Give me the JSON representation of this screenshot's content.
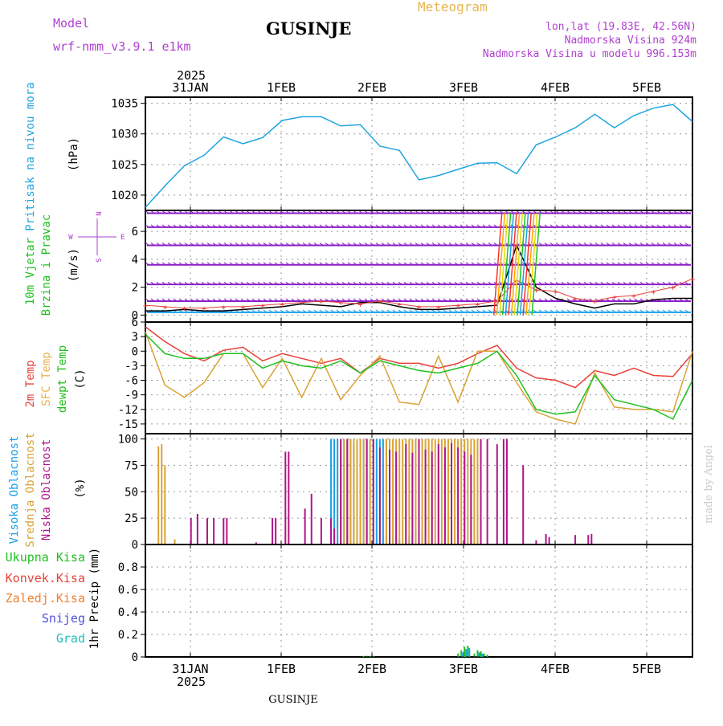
{
  "header": {
    "model_label": "Model",
    "model_name": "wrf-nmm_v3.9.1 e1km",
    "meteogram": "Meteogram",
    "location": "GUSINJE",
    "lonlat": "lon,lat (19.83E, 42.56N)",
    "elevation": "Nadmorska Visina 924m",
    "model_elevation": "Nadmorska Visina u modelu 996.153m",
    "footer_location": "GUSINJE",
    "credit": "made by Angel",
    "top_year": "2025",
    "bottom_year": "2025"
  },
  "colors": {
    "pressure": "#1fa5e0",
    "temp": "#e8413a",
    "sfc": "#d9a336",
    "dewpt": "#20c020",
    "high_cloud": "#1aa0e8",
    "mid_cloud": "#d9a336",
    "low_cloud": "#b0148a",
    "wind_barb": "#8a1ec8",
    "wind_barb2": "#1aa0e8",
    "gust": "#e8413a",
    "wind_speed": "#000000",
    "label_magenta": "#b040d0",
    "label_orange": "#e8b450"
  },
  "chart_data": [
    {
      "type": "line",
      "panel": "pressure",
      "ylabel": [
        "Pritisak na nivou mora",
        "(hPa)"
      ],
      "ylim": [
        1017.5,
        1036
      ],
      "yticks": [
        1020,
        1025,
        1030,
        1035
      ],
      "xlabels": [
        "31JAN",
        "1FEB",
        "2FEB",
        "3FEB",
        "4FEB",
        "5FEB"
      ],
      "x": [
        0,
        6,
        12,
        18,
        24,
        30,
        36,
        42,
        48,
        54,
        60,
        66,
        72,
        78,
        84,
        90,
        96,
        102,
        108,
        114,
        120,
        126,
        132,
        138,
        144,
        150,
        156,
        162,
        168
      ],
      "series": [
        {
          "values": [
            1018.0,
            1021.5,
            1024.8,
            1026.5,
            1029.5,
            1028.4,
            1029.4,
            1032.2,
            1032.8,
            1032.8,
            1031.3,
            1031.5,
            1028.0,
            1027.3,
            1022.5,
            1023.2,
            1024.2,
            1025.2,
            1025.3,
            1023.5,
            1028.2,
            1029.5,
            1031.0,
            1033.2,
            1031.0,
            1033.0,
            1034.2,
            1034.8,
            1032.0
          ]
        }
      ]
    },
    {
      "type": "line",
      "panel": "wind",
      "ylabel": [
        "10m Vjetar",
        "Brzina i Pravac",
        "(m/s)"
      ],
      "legend_symbols": [
        "N",
        "W",
        "E",
        "S"
      ],
      "ylim": [
        -0.5,
        7.5
      ],
      "yticks": [
        0,
        2,
        4,
        6
      ],
      "xlabels": [
        "31JAN",
        "1FEB",
        "2FEB",
        "3FEB",
        "4FEB",
        "5FEB"
      ],
      "x": [
        0,
        6,
        12,
        18,
        24,
        30,
        36,
        42,
        48,
        54,
        60,
        66,
        72,
        78,
        84,
        90,
        96,
        102,
        108,
        114,
        120,
        126,
        132,
        138,
        144,
        150,
        156,
        162,
        168
      ],
      "series": [
        {
          "values": [
            0.3,
            0.3,
            0.4,
            0.3,
            0.3,
            0.4,
            0.5,
            0.6,
            0.8,
            0.7,
            0.6,
            0.9,
            0.9,
            0.6,
            0.4,
            0.4,
            0.5,
            0.6,
            0.7,
            5.0,
            2.0,
            1.2,
            0.8,
            0.5,
            0.8,
            0.8,
            1.1,
            1.2,
            1.2
          ]
        },
        {
          "values": [
            0.7,
            0.6,
            0.5,
            0.5,
            0.6,
            0.6,
            0.7,
            0.8,
            0.9,
            1.0,
            0.9,
            0.8,
            1.0,
            0.8,
            0.6,
            0.6,
            0.7,
            0.8,
            1.0,
            2.5,
            1.8,
            1.7,
            1.2,
            1.0,
            1.3,
            1.4,
            1.7,
            2.0,
            2.6
          ]
        }
      ]
    },
    {
      "type": "line",
      "panel": "temperature",
      "ylabel": [
        "2m Temp",
        "SFC Temp",
        "dewpt Temp",
        "(C)"
      ],
      "ylim": [
        -17,
        6
      ],
      "yticks": [
        6,
        3,
        0,
        -3,
        -6,
        -9,
        -12,
        -15
      ],
      "xlabels": [
        "31JAN",
        "1FEB",
        "2FEB",
        "3FEB",
        "4FEB",
        "5FEB"
      ],
      "x": [
        0,
        6,
        12,
        18,
        24,
        30,
        36,
        42,
        48,
        54,
        60,
        66,
        72,
        78,
        84,
        90,
        96,
        102,
        108,
        114,
        120,
        126,
        132,
        138,
        144,
        150,
        156,
        162,
        168
      ],
      "series": [
        {
          "values": [
            5.0,
            2.0,
            -0.5,
            -2.0,
            0.2,
            0.8,
            -2.0,
            -0.5,
            -1.5,
            -2.5,
            -1.5,
            -4.5,
            -1.5,
            -2.5,
            -2.5,
            -3.5,
            -2.5,
            -0.5,
            1.2,
            -3.5,
            -5.5,
            -6.0,
            -7.5,
            -4.0,
            -5.0,
            -3.5,
            -5.0,
            -5.2,
            -0.5
          ]
        },
        {
          "values": [
            4.0,
            -7.0,
            -9.5,
            -6.5,
            -0.5,
            -0.5,
            -7.5,
            -1.5,
            -9.5,
            -1.5,
            -10.0,
            -5.0,
            -1.0,
            -10.5,
            -11.0,
            -1.0,
            -10.5,
            0.0,
            0.0,
            -6.5,
            -12.5,
            -14.0,
            -15.0,
            -4.5,
            -11.5,
            -12.0,
            -12.0,
            -12.5,
            0.0
          ]
        },
        {
          "values": [
            3.5,
            -0.5,
            -1.5,
            -1.5,
            -0.5,
            -0.5,
            -3.5,
            -2.0,
            -3.0,
            -3.5,
            -2.0,
            -4.5,
            -2.0,
            -3.0,
            -4.0,
            -4.5,
            -3.5,
            -2.5,
            0.0,
            -5.0,
            -12.0,
            -13.0,
            -12.5,
            -5.0,
            -10.0,
            -11.0,
            -12.0,
            -14.0,
            -6.0
          ]
        }
      ]
    },
    {
      "type": "bar",
      "panel": "clouds",
      "ylabel": [
        "Visoka Oblacnost",
        "Srednja Oblacnost",
        "Niska Oblacnost",
        "(%)"
      ],
      "ylim": [
        0,
        105
      ],
      "yticks": [
        0,
        25,
        50,
        75,
        100
      ],
      "xlabels": [
        "31JAN",
        "1FEB",
        "2FEB",
        "3FEB",
        "4FEB",
        "5FEB"
      ],
      "series": [
        {
          "name": "high",
          "x": [
            57,
            58,
            59,
            60,
            61,
            62,
            63,
            64,
            65,
            66,
            67,
            70,
            71,
            72,
            73,
            74,
            75,
            76,
            77,
            78,
            81,
            82,
            83,
            84,
            85
          ],
          "values": [
            100,
            100,
            100,
            90,
            100,
            100,
            100,
            95,
            100,
            100,
            100,
            100,
            100,
            100,
            100,
            100,
            10,
            8,
            6,
            5,
            8,
            12,
            14,
            15,
            10
          ]
        },
        {
          "name": "mid",
          "x": [
            4,
            5,
            6,
            9,
            60,
            61,
            62,
            63,
            64,
            65,
            66,
            67,
            68,
            69,
            74,
            75,
            76,
            77,
            78,
            79,
            80,
            81,
            82,
            83,
            84,
            85,
            86,
            87,
            88,
            89,
            90,
            91,
            92,
            93,
            94,
            95,
            96,
            97,
            98,
            99,
            100,
            101,
            102
          ],
          "values": [
            93,
            95,
            75,
            5,
            100,
            100,
            100,
            100,
            100,
            100,
            100,
            100,
            100,
            100,
            100,
            100,
            100,
            100,
            100,
            100,
            100,
            100,
            100,
            100,
            100,
            100,
            100,
            100,
            100,
            100,
            100,
            100,
            100,
            100,
            100,
            100,
            100,
            100,
            100,
            100,
            100,
            100,
            100
          ]
        },
        {
          "name": "low",
          "x": [
            14,
            16,
            19,
            21,
            24,
            25,
            34,
            39,
            40,
            43,
            44,
            49,
            51,
            54,
            57,
            58,
            60,
            62,
            68,
            70,
            72,
            75,
            77,
            80,
            82,
            84,
            86,
            88,
            90,
            92,
            94,
            96,
            98,
            100,
            103,
            105,
            108,
            110,
            111,
            116,
            120,
            123,
            124,
            132,
            136,
            137
          ],
          "values": [
            25,
            29,
            25,
            25,
            25,
            25,
            2,
            25,
            25,
            88,
            88,
            34,
            48,
            25,
            25,
            15,
            100,
            100,
            100,
            100,
            92,
            90,
            88,
            95,
            87,
            100,
            90,
            88,
            95,
            92,
            96,
            92,
            88,
            85,
            100,
            100,
            95,
            100,
            100,
            75,
            4,
            10,
            7,
            9,
            9,
            10
          ]
        }
      ]
    },
    {
      "type": "bar",
      "panel": "precipitation",
      "ylabel": [
        "1hr Precip (mm)"
      ],
      "legend": [
        "Ukupna Kisa",
        "Konvek.Kisa",
        "Zaledj.Kisa",
        "Snijeg",
        "Grad"
      ],
      "ylim": [
        0,
        1.0
      ],
      "yticks": [
        0,
        0.2,
        0.4,
        0.6,
        0.8
      ],
      "xlabels": [
        "31JAN",
        "1FEB",
        "2FEB",
        "3FEB",
        "4FEB",
        "5FEB"
      ],
      "series": [
        {
          "name": "Ukupna Kisa",
          "x": [
            96,
            97,
            98,
            99,
            101,
            102,
            103,
            104,
            105
          ],
          "values": [
            0.03,
            0.06,
            0.09,
            0.1,
            0.03,
            0.06,
            0.05,
            0.03,
            0.02
          ]
        },
        {
          "name": "Snijeg",
          "x": [
            97,
            98,
            99,
            102,
            103
          ],
          "values": [
            0.04,
            0.07,
            0.08,
            0.04,
            0.03
          ]
        },
        {
          "name": "Ukupna Kisa",
          "x": [
            67,
            68,
            69,
            70
          ],
          "values": [
            0.01,
            0.01,
            0.01,
            0.01
          ]
        }
      ]
    }
  ]
}
